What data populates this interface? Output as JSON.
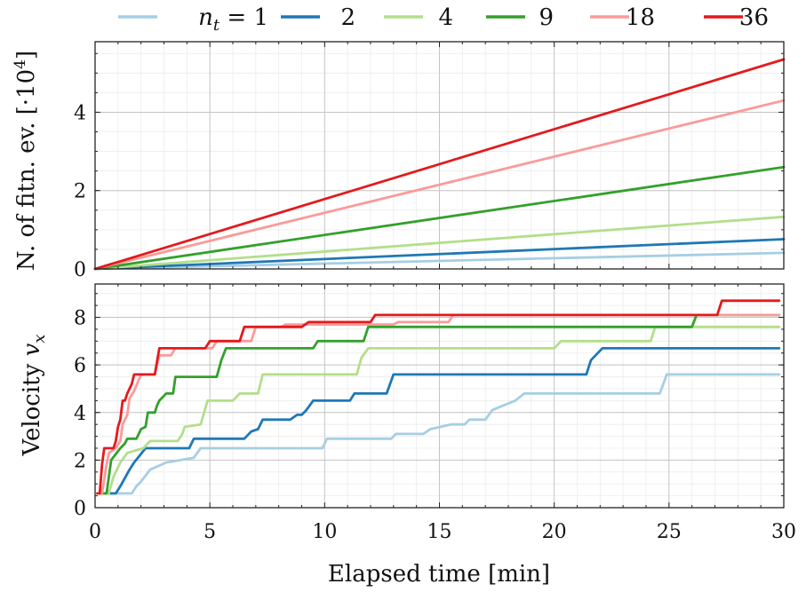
{
  "chart_data": [
    {
      "type": "line",
      "ylabel": "N. of fitn. ev. [·10⁴]",
      "xlim": [
        0,
        30
      ],
      "ylim": [
        0,
        5.8
      ],
      "x_ticks": [
        "0",
        "5",
        "10",
        "15",
        "20",
        "25",
        "30"
      ],
      "y_ticks": [
        "0",
        "2",
        "4"
      ],
      "grid": true,
      "series": [
        {
          "name": "1",
          "color": "#a6cee3",
          "points": [
            [
              0,
              0
            ],
            [
              30,
              0.41
            ]
          ]
        },
        {
          "name": "2",
          "color": "#1f78b4",
          "points": [
            [
              0,
              0
            ],
            [
              30,
              0.76
            ]
          ]
        },
        {
          "name": "4",
          "color": "#b2df8a",
          "points": [
            [
              0,
              0
            ],
            [
              30,
              1.33
            ]
          ]
        },
        {
          "name": "9",
          "color": "#33a02c",
          "points": [
            [
              0,
              0
            ],
            [
              30,
              2.6
            ]
          ]
        },
        {
          "name": "18",
          "color": "#fb9a99",
          "points": [
            [
              0,
              0
            ],
            [
              30,
              4.3
            ]
          ]
        },
        {
          "name": "36",
          "color": "#e31a1c",
          "points": [
            [
              0,
              0
            ],
            [
              30,
              5.35
            ]
          ]
        }
      ]
    },
    {
      "type": "line",
      "ylabel": "Velocity v_x",
      "xlabel": "Elapsed time [min]",
      "xlim": [
        0,
        30
      ],
      "ylim": [
        0,
        9.4
      ],
      "x_ticks": [
        "0",
        "5",
        "10",
        "15",
        "20",
        "25",
        "30"
      ],
      "y_ticks": [
        "0",
        "2",
        "4",
        "6",
        "8"
      ],
      "grid": true,
      "series": [
        {
          "name": "1",
          "color": "#a6cee3",
          "points": [
            [
              0.1,
              0.6
            ],
            [
              1.6,
              0.6
            ],
            [
              1.8,
              0.9
            ],
            [
              2.0,
              1.1
            ],
            [
              2.4,
              1.6
            ],
            [
              3.1,
              1.9
            ],
            [
              4.3,
              2.1
            ],
            [
              4.6,
              2.5
            ],
            [
              9.9,
              2.5
            ],
            [
              10.1,
              2.9
            ],
            [
              12.9,
              2.9
            ],
            [
              13.1,
              3.1
            ],
            [
              14.3,
              3.1
            ],
            [
              14.6,
              3.3
            ],
            [
              15.5,
              3.5
            ],
            [
              16.1,
              3.5
            ],
            [
              16.3,
              3.7
            ],
            [
              17.0,
              3.7
            ],
            [
              17.3,
              4.1
            ],
            [
              17.8,
              4.3
            ],
            [
              18.3,
              4.5
            ],
            [
              18.7,
              4.8
            ],
            [
              24.6,
              4.8
            ],
            [
              24.9,
              5.6
            ],
            [
              29.8,
              5.6
            ]
          ]
        },
        {
          "name": "2",
          "color": "#1f78b4",
          "points": [
            [
              0.1,
              0.6
            ],
            [
              0.9,
              0.6
            ],
            [
              1.1,
              0.9
            ],
            [
              1.5,
              1.6
            ],
            [
              1.7,
              1.9
            ],
            [
              2.2,
              2.5
            ],
            [
              4.1,
              2.5
            ],
            [
              4.3,
              2.9
            ],
            [
              6.5,
              2.9
            ],
            [
              6.8,
              3.2
            ],
            [
              7.1,
              3.3
            ],
            [
              7.3,
              3.7
            ],
            [
              8.5,
              3.7
            ],
            [
              8.8,
              3.9
            ],
            [
              9.0,
              3.9
            ],
            [
              9.2,
              4.1
            ],
            [
              9.5,
              4.5
            ],
            [
              11.1,
              4.5
            ],
            [
              11.3,
              4.8
            ],
            [
              12.7,
              4.8
            ],
            [
              13.0,
              5.6
            ],
            [
              21.4,
              5.6
            ],
            [
              21.6,
              6.2
            ],
            [
              21.9,
              6.5
            ],
            [
              22.1,
              6.7
            ],
            [
              29.8,
              6.7
            ]
          ]
        },
        {
          "name": "4",
          "color": "#b2df8a",
          "points": [
            [
              0.1,
              0.6
            ],
            [
              0.6,
              0.6
            ],
            [
              0.8,
              1.3
            ],
            [
              1.1,
              1.9
            ],
            [
              1.4,
              2.3
            ],
            [
              2.1,
              2.5
            ],
            [
              2.4,
              2.8
            ],
            [
              3.6,
              2.8
            ],
            [
              3.8,
              3.1
            ],
            [
              3.9,
              3.4
            ],
            [
              4.6,
              3.5
            ],
            [
              4.9,
              4.5
            ],
            [
              6.0,
              4.5
            ],
            [
              6.3,
              4.8
            ],
            [
              7.1,
              4.8
            ],
            [
              7.3,
              5.6
            ],
            [
              11.4,
              5.6
            ],
            [
              11.6,
              6.3
            ],
            [
              11.9,
              6.7
            ],
            [
              20.0,
              6.7
            ],
            [
              20.3,
              7.0
            ],
            [
              24.2,
              7.0
            ],
            [
              24.4,
              7.6
            ],
            [
              29.8,
              7.6
            ]
          ]
        },
        {
          "name": "9",
          "color": "#33a02c",
          "points": [
            [
              0.1,
              0.6
            ],
            [
              0.5,
              0.6
            ],
            [
              0.7,
              2.0
            ],
            [
              1.1,
              2.5
            ],
            [
              1.3,
              2.7
            ],
            [
              1.4,
              2.9
            ],
            [
              1.8,
              2.9
            ],
            [
              2.0,
              3.3
            ],
            [
              2.2,
              3.4
            ],
            [
              2.3,
              4.0
            ],
            [
              2.6,
              4.0
            ],
            [
              2.7,
              4.3
            ],
            [
              2.8,
              4.5
            ],
            [
              3.1,
              4.8
            ],
            [
              3.4,
              4.8
            ],
            [
              3.5,
              5.5
            ],
            [
              5.3,
              5.5
            ],
            [
              5.5,
              6.2
            ],
            [
              5.7,
              6.7
            ],
            [
              9.5,
              6.7
            ],
            [
              9.7,
              7.0
            ],
            [
              11.7,
              7.0
            ],
            [
              11.9,
              7.6
            ],
            [
              26.0,
              7.6
            ],
            [
              26.2,
              8.1
            ],
            [
              29.8,
              8.1
            ]
          ]
        },
        {
          "name": "18",
          "color": "#fb9a99",
          "points": [
            [
              0.1,
              0.6
            ],
            [
              0.3,
              0.6
            ],
            [
              0.5,
              1.8
            ],
            [
              0.6,
              2.3
            ],
            [
              0.9,
              2.5
            ],
            [
              1.1,
              2.8
            ],
            [
              1.2,
              3.5
            ],
            [
              1.4,
              3.9
            ],
            [
              1.5,
              4.6
            ],
            [
              1.7,
              4.9
            ],
            [
              2.0,
              5.6
            ],
            [
              2.6,
              5.6
            ],
            [
              2.8,
              6.4
            ],
            [
              3.3,
              6.4
            ],
            [
              3.5,
              6.7
            ],
            [
              5.1,
              6.7
            ],
            [
              5.3,
              7.0
            ],
            [
              6.8,
              7.0
            ],
            [
              7.0,
              7.6
            ],
            [
              8.1,
              7.6
            ],
            [
              8.3,
              7.7
            ],
            [
              13.0,
              7.7
            ],
            [
              13.2,
              7.8
            ],
            [
              15.4,
              7.8
            ],
            [
              15.6,
              8.1
            ],
            [
              29.8,
              8.1
            ]
          ]
        },
        {
          "name": "36",
          "color": "#e31a1c",
          "points": [
            [
              0.1,
              0.6
            ],
            [
              0.2,
              0.6
            ],
            [
              0.3,
              1.8
            ],
            [
              0.4,
              2.5
            ],
            [
              0.8,
              2.5
            ],
            [
              0.9,
              2.8
            ],
            [
              1.0,
              3.4
            ],
            [
              1.1,
              3.7
            ],
            [
              1.2,
              4.5
            ],
            [
              1.3,
              4.5
            ],
            [
              1.4,
              4.8
            ],
            [
              1.6,
              5.2
            ],
            [
              1.7,
              5.6
            ],
            [
              2.2,
              5.6
            ],
            [
              2.3,
              5.6
            ],
            [
              2.6,
              5.6
            ],
            [
              2.8,
              6.7
            ],
            [
              4.8,
              6.7
            ],
            [
              5.0,
              7.0
            ],
            [
              6.3,
              7.0
            ],
            [
              6.5,
              7.6
            ],
            [
              9.0,
              7.6
            ],
            [
              9.3,
              7.8
            ],
            [
              12.0,
              7.8
            ],
            [
              12.2,
              8.1
            ],
            [
              27.1,
              8.1
            ],
            [
              27.3,
              8.7
            ],
            [
              29.8,
              8.7
            ]
          ]
        }
      ]
    }
  ],
  "legend": {
    "var_name": "n",
    "var_sub": "t",
    "entries": [
      "= 1",
      "2",
      "4",
      "9",
      "18",
      "36"
    ]
  }
}
